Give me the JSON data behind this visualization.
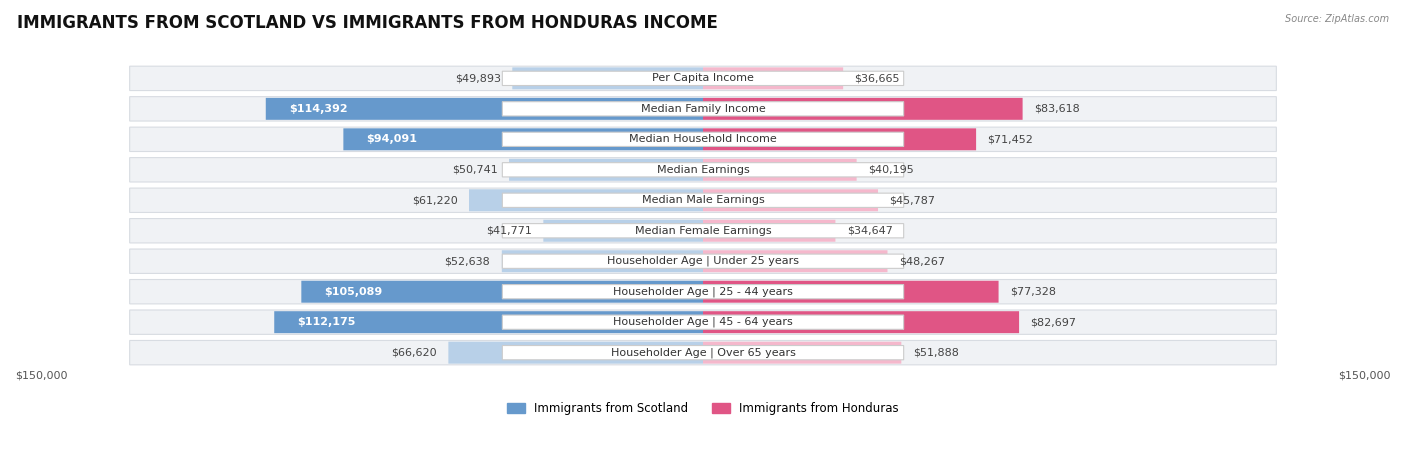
{
  "title": "IMMIGRANTS FROM SCOTLAND VS IMMIGRANTS FROM HONDURAS INCOME",
  "source": "Source: ZipAtlas.com",
  "categories": [
    "Per Capita Income",
    "Median Family Income",
    "Median Household Income",
    "Median Earnings",
    "Median Male Earnings",
    "Median Female Earnings",
    "Householder Age | Under 25 years",
    "Householder Age | 25 - 44 years",
    "Householder Age | 45 - 64 years",
    "Householder Age | Over 65 years"
  ],
  "scotland_values": [
    49893,
    114392,
    94091,
    50741,
    61220,
    41771,
    52638,
    105089,
    112175,
    66620
  ],
  "honduras_values": [
    36665,
    83618,
    71452,
    40195,
    45787,
    34647,
    48267,
    77328,
    82697,
    51888
  ],
  "scotland_color_light": "#b8d0e8",
  "scotland_color_dark": "#6699cc",
  "honduras_color_light": "#f5b8cc",
  "honduras_color_dark": "#e05585",
  "row_bg": "#f0f2f5",
  "row_border": "#d8dce2",
  "max_value": 150000,
  "xlabel_left": "$150,000",
  "xlabel_right": "$150,000",
  "legend_scotland": "Immigrants from Scotland",
  "legend_honduras": "Immigrants from Honduras",
  "title_fontsize": 12,
  "value_fontsize": 8,
  "category_fontsize": 8
}
